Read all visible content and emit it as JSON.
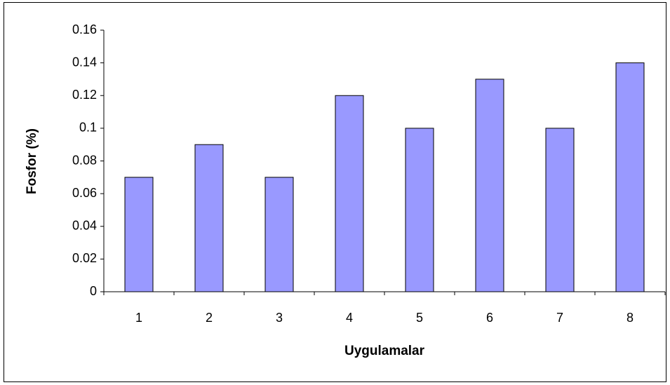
{
  "chart_data": {
    "type": "bar",
    "xlabel": "Uygulamalar",
    "ylabel": "Fosfor (%)",
    "categories": [
      "1",
      "2",
      "3",
      "4",
      "5",
      "6",
      "7",
      "8"
    ],
    "values": [
      0.07,
      0.09,
      0.07,
      0.12,
      0.1,
      0.13,
      0.1,
      0.14
    ],
    "color": "#9999ff",
    "ylim": [
      0,
      0.16
    ],
    "yticks": [
      0,
      0.02,
      0.04,
      0.06,
      0.08,
      0.1,
      0.12,
      0.14,
      0.16
    ],
    "grid": false
  }
}
